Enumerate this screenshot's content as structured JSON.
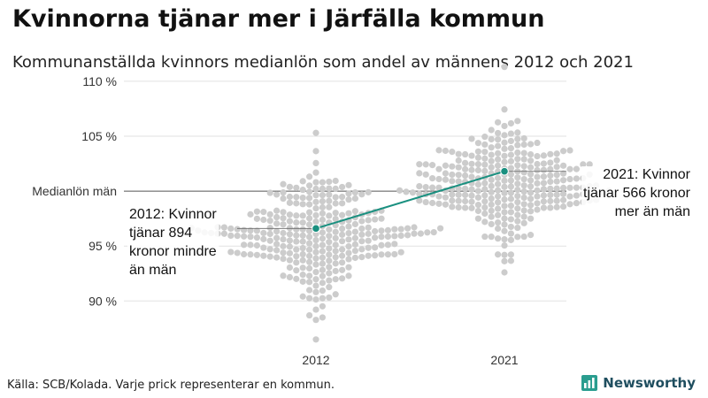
{
  "header": {
    "title": "Kvinnorna tjänar mer i Järfälla kommun",
    "subtitle": "Kommunanställda kvinnors medianlön som andel av männens 2012 och 2021"
  },
  "footer": {
    "source": "Källa: SCB/Kolada. Varje prick representerar en kommun.",
    "brand": "Newsworthy"
  },
  "colors": {
    "dots": "#cccccc",
    "highlight": "#1a9080",
    "grid": "#e2e2e2",
    "reference": "#555555",
    "brand": "#1f4e5f",
    "brand_icon": "#2a9d8f"
  },
  "chart_data": {
    "type": "scatter",
    "subtype": "beeswarm",
    "categories": [
      "2012",
      "2021"
    ],
    "ylim": [
      86,
      112
    ],
    "yticks": [
      {
        "value": 90,
        "label": "90 %"
      },
      {
        "value": 95,
        "label": "95 %"
      },
      {
        "value": 105,
        "label": "105 %"
      },
      {
        "value": 110,
        "label": "110 %"
      }
    ],
    "reference_line": {
      "value": 100,
      "label": "Medianlön män"
    },
    "distributions": [
      {
        "category": "2012",
        "center": 96.0,
        "spread": 2.7,
        "min": 86.5,
        "max": 105.3
      },
      {
        "category": "2021",
        "center": 100.8,
        "spread": 2.6,
        "min": 92.6,
        "max": 111.3
      }
    ],
    "highlight": {
      "name": "Järfälla kommun",
      "values": [
        {
          "category": "2012",
          "value": 96.6
        },
        {
          "category": "2021",
          "value": 101.8
        }
      ],
      "annotations": [
        {
          "category": "2012",
          "lines": [
            "2012: Kvinnor",
            "tjänar 894",
            "kronor mindre",
            "än män"
          ]
        },
        {
          "category": "2021",
          "lines": [
            "2021: Kvinnor",
            "tjänar 566 kronor",
            "mer än män"
          ]
        }
      ]
    },
    "grid": true,
    "legend": "none"
  }
}
